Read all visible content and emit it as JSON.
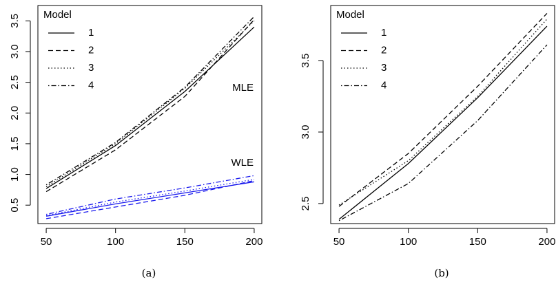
{
  "chart_data": [
    {
      "type": "line",
      "caption": "(a)",
      "legend_title": "Model",
      "x": [
        50,
        100,
        150,
        200
      ],
      "xlim": [
        44,
        206
      ],
      "xticks": [
        50,
        100,
        150,
        200
      ],
      "ylim": [
        0.2,
        3.75
      ],
      "yticks": [
        0.5,
        {
          "value": 1,
          "label": "1.0"
        },
        1.5,
        {
          "value": 2,
          "label": "2.0"
        },
        2.5,
        {
          "value": 3,
          "label": "3.0"
        },
        3.5
      ],
      "groups": [
        {
          "label": "MLE",
          "color": "#000000",
          "series": [
            {
              "name": "1",
              "dash": "solid",
              "values": [
                0.77,
                1.47,
                2.35,
                3.4
              ]
            },
            {
              "name": "2",
              "dash": "dashed",
              "values": [
                0.72,
                1.4,
                2.27,
                3.52
              ]
            },
            {
              "name": "3",
              "dash": "dotted",
              "values": [
                0.8,
                1.5,
                2.4,
                3.5
              ]
            },
            {
              "name": "4",
              "dash": "dotdash",
              "values": [
                0.83,
                1.52,
                2.42,
                3.57
              ]
            }
          ]
        },
        {
          "label": "WLE",
          "color": "#1a1aee",
          "series": [
            {
              "dash": "solid",
              "values": [
                0.32,
                0.52,
                0.7,
                0.88
              ]
            },
            {
              "dash": "dashed",
              "values": [
                0.28,
                0.47,
                0.66,
                0.9
              ]
            },
            {
              "dash": "dotted",
              "values": [
                0.33,
                0.55,
                0.73,
                0.92
              ]
            },
            {
              "dash": "dotdash",
              "values": [
                0.35,
                0.6,
                0.78,
                0.98
              ]
            }
          ]
        }
      ]
    },
    {
      "type": "line",
      "caption": "(b)",
      "legend_title": "Model",
      "x": [
        50,
        100,
        150,
        200
      ],
      "xlim": [
        44,
        206
      ],
      "xticks": [
        50,
        100,
        150,
        200
      ],
      "ylim": [
        2.36,
        3.885
      ],
      "yticks": [
        2.5,
        {
          "value": 3,
          "label": "3.0"
        },
        3.5
      ],
      "color": "#000000",
      "series": [
        {
          "name": "1",
          "dash": "solid",
          "values": [
            2.39,
            2.78,
            3.24,
            3.74
          ]
        },
        {
          "name": "2",
          "dash": "dashed",
          "values": [
            2.48,
            2.85,
            3.32,
            3.83
          ]
        },
        {
          "name": "3",
          "dash": "dotted",
          "values": [
            2.49,
            2.8,
            3.25,
            3.79
          ]
        },
        {
          "name": "4",
          "dash": "dotdash",
          "values": [
            2.38,
            2.64,
            3.08,
            3.61
          ]
        }
      ]
    }
  ]
}
